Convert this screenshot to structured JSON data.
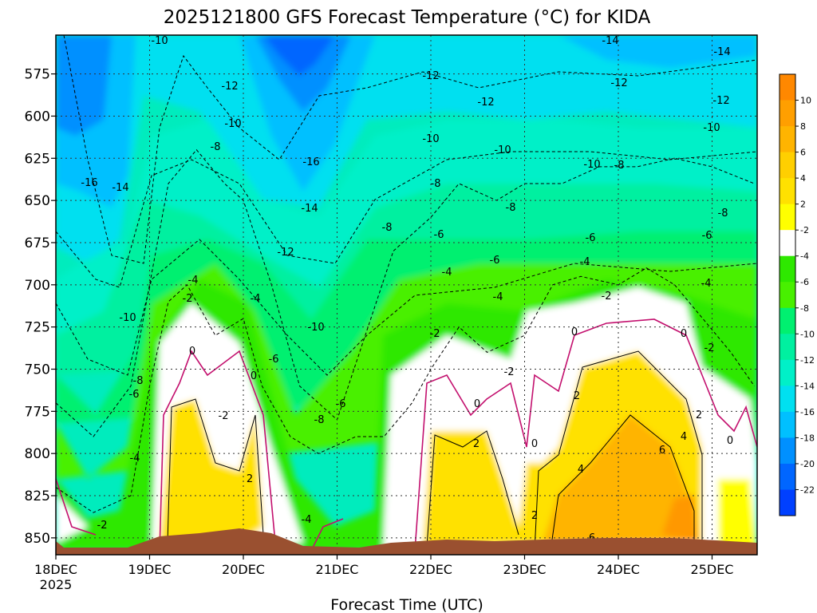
{
  "chart_data": {
    "type": "heatmap",
    "title": "2025121800 GFS Forecast Temperature (°C) for KIDA",
    "xlabel": "Forecast Time (UTC)",
    "ylabel": "",
    "x_tick_labels": [
      "18DEC",
      "19DEC",
      "20DEC",
      "21DEC",
      "22DEC",
      "23DEC",
      "24DEC",
      "25DEC"
    ],
    "x_tick_sublabel": "2025",
    "y_ticks": [
      575,
      600,
      625,
      650,
      675,
      700,
      725,
      750,
      775,
      800,
      825,
      850
    ],
    "y_range": [
      552,
      860
    ],
    "x_range_days": [
      0,
      7.45
    ],
    "colorbar": {
      "levels": [
        10,
        8,
        6,
        4,
        2,
        -2,
        -4,
        -6,
        -8,
        -10,
        -12,
        -14,
        -16,
        -18,
        -20,
        -22
      ],
      "tick_labels": [
        "10",
        "8",
        "6",
        "4",
        "2",
        "-2",
        "-4",
        "-6",
        "-8",
        "-10",
        "-12",
        "-14",
        "-16",
        "-18",
        "-20",
        "-22"
      ],
      "colors": [
        "#ff8800",
        "#ff9f00",
        "#ffb400",
        "#ffcf00",
        "#ffe100",
        "#ffff00",
        "#ffffff",
        "#2ee800",
        "#48f000",
        "#00f070",
        "#00f0a0",
        "#00f0c8",
        "#00e0f0",
        "#00c0ff",
        "#0090ff",
        "#0066ff",
        "#0040ff"
      ]
    },
    "contour_labels": [
      "-10",
      "-12",
      "-14",
      "-16",
      "-8",
      "-6",
      "-4",
      "-2",
      "0",
      "2",
      "4",
      "6"
    ],
    "series": [
      {
        "name": "-2 C level (hPa)",
        "x_days": [
          0,
          0.4,
          0.8,
          1.0,
          1.2,
          1.4,
          1.7,
          2.0,
          2.2,
          2.5,
          2.8,
          3.2,
          3.5,
          3.8,
          4.0,
          4.3,
          4.6,
          5.0,
          5.3,
          5.6,
          6.0,
          6.3,
          6.6,
          6.9,
          7.2,
          7.45
        ],
        "values": [
          820,
          835,
          825,
          760,
          710,
          700,
          730,
          720,
          760,
          790,
          800,
          790,
          790,
          770,
          750,
          725,
          740,
          730,
          700,
          695,
          700,
          690,
          700,
          720,
          740,
          760
        ]
      },
      {
        "name": "-8 C level (hPa)",
        "x_days": [
          0,
          0.4,
          0.8,
          1.0,
          1.2,
          1.5,
          1.8,
          2.0,
          2.3,
          2.6,
          3.0,
          3.3,
          3.6,
          4.0,
          4.3,
          4.7,
          5.0,
          5.4,
          5.8,
          6.2,
          6.6,
          7.0,
          7.45
        ],
        "values": [
          770,
          790,
          760,
          700,
          640,
          620,
          640,
          650,
          700,
          760,
          780,
          730,
          680,
          660,
          640,
          650,
          640,
          640,
          630,
          630,
          625,
          630,
          640
        ]
      }
    ]
  }
}
